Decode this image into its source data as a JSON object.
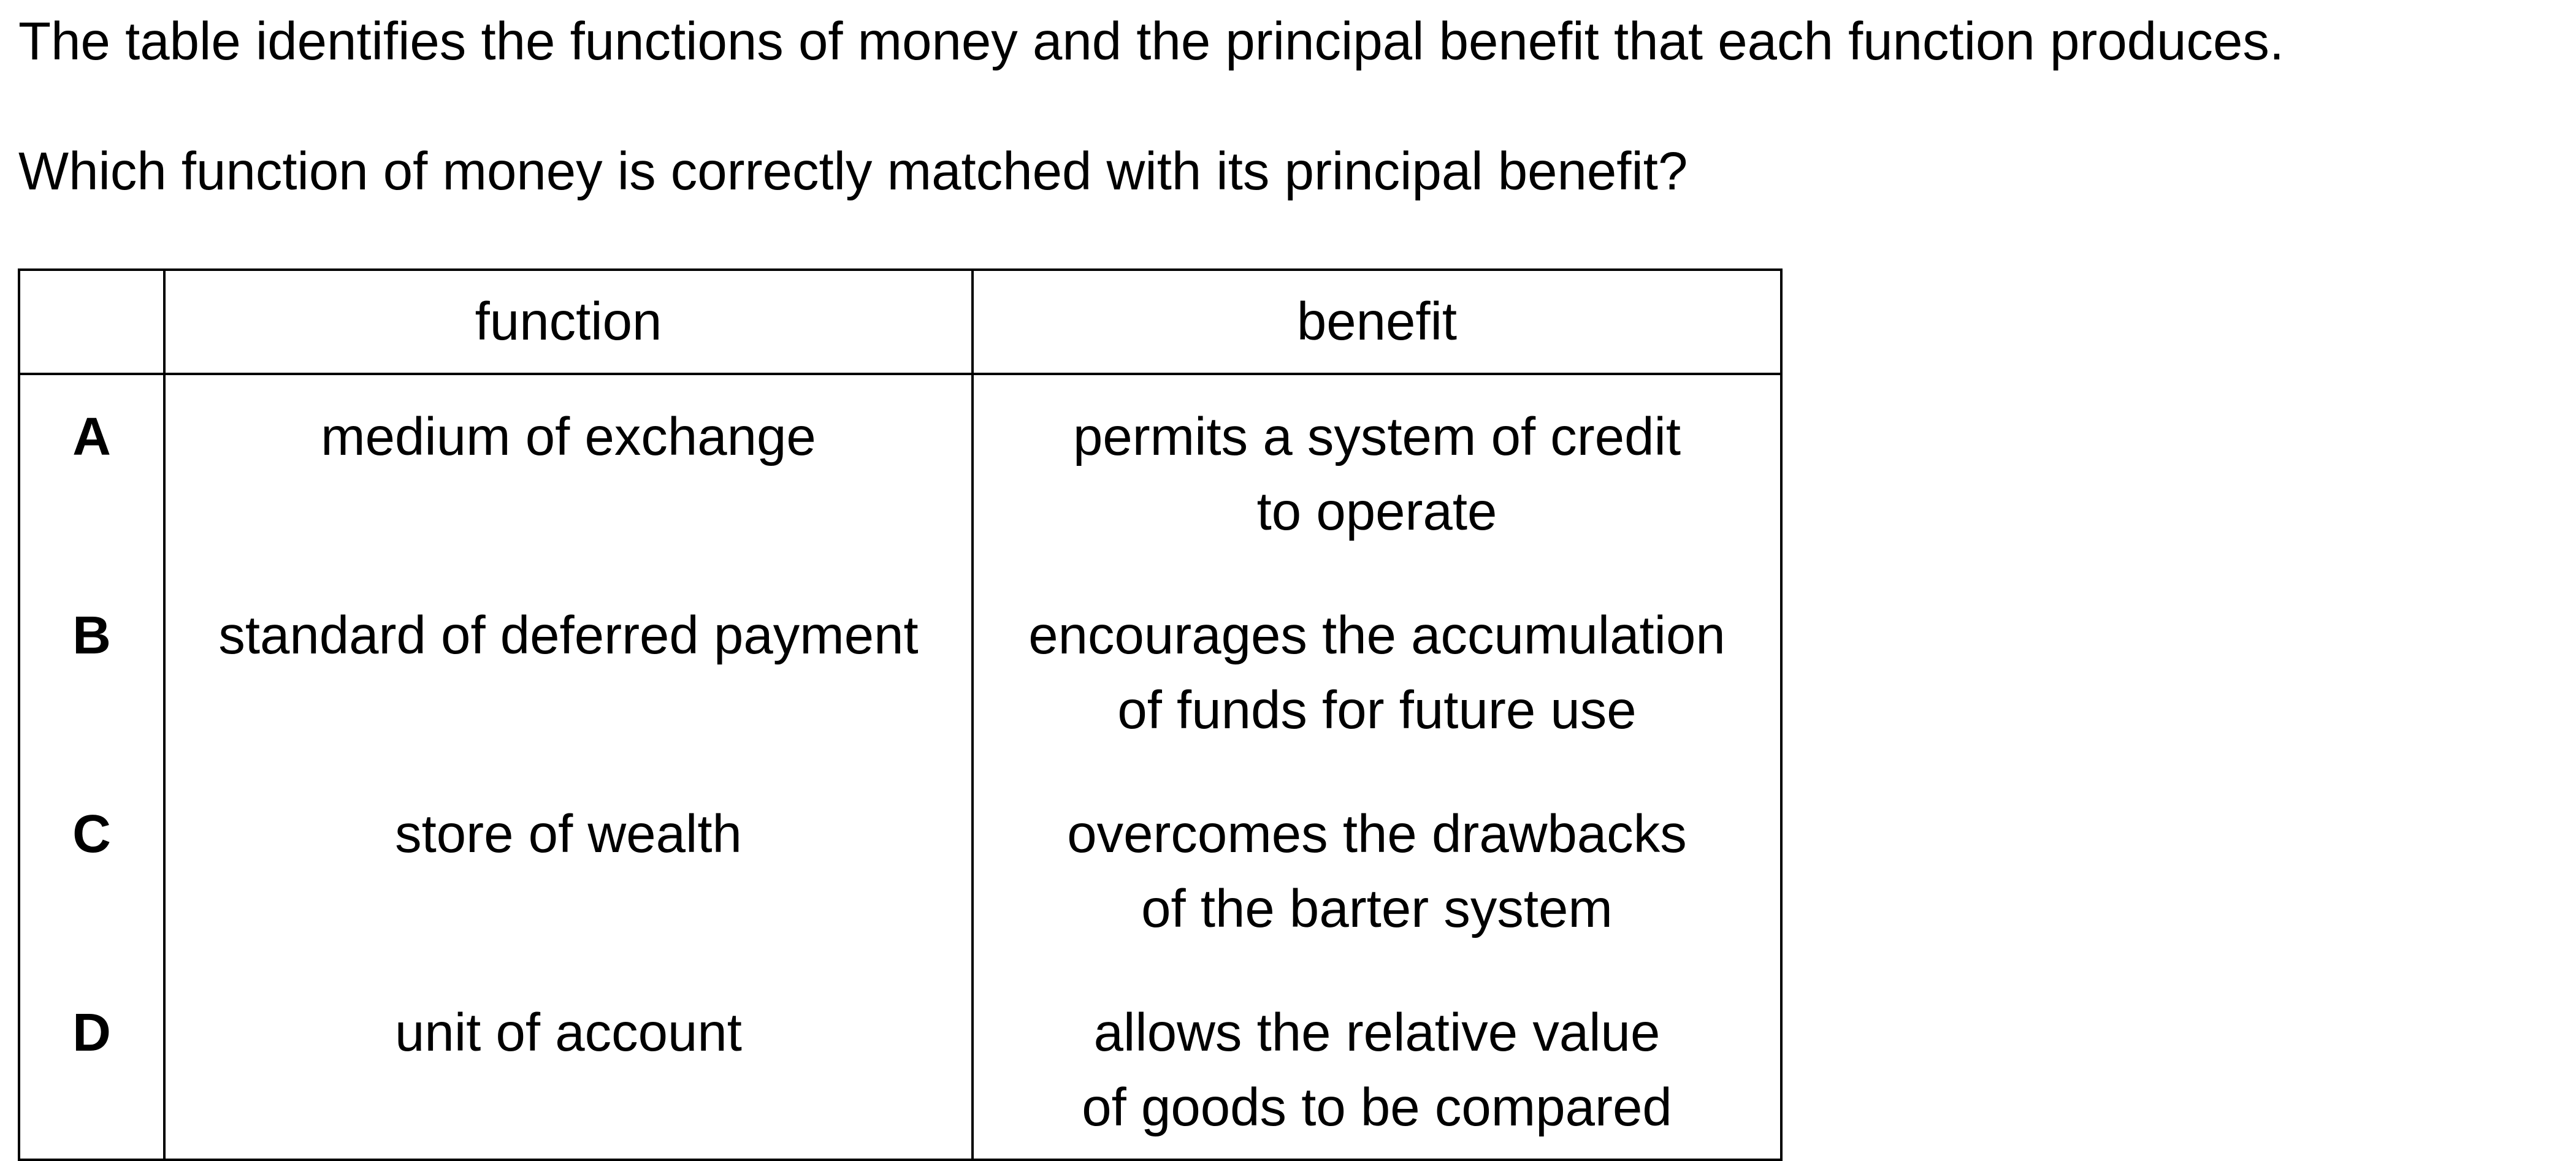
{
  "intro": "The table identifies the functions of money and the principal benefit that each function produces.",
  "question": "Which function of money is correctly matched with its principal benefit?",
  "table": {
    "headers": {
      "letter": "",
      "function": "function",
      "benefit": "benefit"
    },
    "rows": [
      {
        "letter": "A",
        "function": "medium of exchange",
        "benefit_line1": "permits a system of credit",
        "benefit_line2": "to operate"
      },
      {
        "letter": "B",
        "function": "standard of deferred payment",
        "benefit_line1": "encourages the accumulation",
        "benefit_line2": "of funds for future use"
      },
      {
        "letter": "C",
        "function": "store of wealth",
        "benefit_line1": "overcomes the drawbacks",
        "benefit_line2": "of the barter system"
      },
      {
        "letter": "D",
        "function": "unit of account",
        "benefit_line1": "allows the relative value",
        "benefit_line2": "of goods to be compared"
      }
    ]
  }
}
